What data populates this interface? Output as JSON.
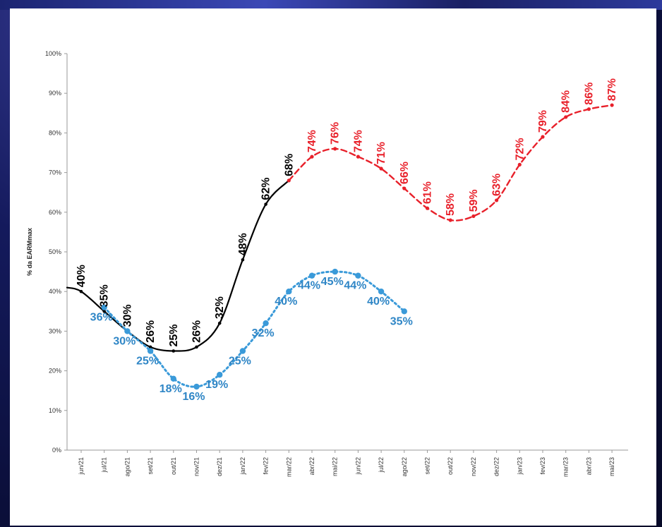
{
  "chart_data": {
    "type": "line",
    "ylabel": "% da EARMmax",
    "ylim": [
      0,
      100
    ],
    "yticks": [
      "0%",
      "10%",
      "20%",
      "30%",
      "40%",
      "50%",
      "60%",
      "70%",
      "80%",
      "90%",
      "100%"
    ],
    "categories": [
      "jun/21",
      "jul/21",
      "ago/21",
      "set/21",
      "out/21",
      "nov/21",
      "dez/21",
      "jan/22",
      "fev/22",
      "mar/22",
      "abr/22",
      "mai/22",
      "jun/22",
      "jul/22",
      "ago/22",
      "set/22",
      "out/22",
      "nov/22",
      "dez/22",
      "jan/23",
      "fev/23",
      "mar/23",
      "abr/23",
      "mai/23"
    ],
    "series": [
      {
        "color": "#000000",
        "style": "solid",
        "label_color": "#000000",
        "lead_in": 41,
        "values": [
          40,
          35,
          30,
          26,
          25,
          26,
          32,
          48,
          62,
          68,
          null,
          null,
          null,
          null,
          null,
          null,
          null,
          null,
          null,
          null,
          null,
          null,
          null,
          null
        ],
        "labels": [
          "40%",
          "35%",
          "30%",
          "26%",
          "25%",
          "26%",
          "32%",
          "48%",
          "62%",
          "68%",
          null,
          null,
          null,
          null,
          null,
          null,
          null,
          null,
          null,
          null,
          null,
          null,
          null,
          null
        ]
      },
      {
        "color": "#e8202a",
        "style": "dashed",
        "label_color": "#e8202a",
        "values": [
          null,
          null,
          null,
          null,
          null,
          null,
          null,
          null,
          null,
          68,
          74,
          76,
          74,
          71,
          66,
          61,
          58,
          59,
          63,
          72,
          79,
          84,
          86,
          87
        ],
        "labels": [
          null,
          null,
          null,
          null,
          null,
          null,
          null,
          null,
          null,
          null,
          "74%",
          "76%",
          "74%",
          "71%",
          "66%",
          "61%",
          "58%",
          "59%",
          "63%",
          "72%",
          "79%",
          "84%",
          "86%",
          "87%"
        ]
      },
      {
        "color": "#3a9ad9",
        "style": "dotted",
        "label_color": "#2f86c6",
        "values": [
          null,
          36,
          30,
          25,
          18,
          16,
          19,
          25,
          32,
          40,
          44,
          45,
          44,
          40,
          35,
          null,
          null,
          null,
          null,
          null,
          null,
          null,
          null,
          null
        ],
        "labels": [
          null,
          "36%",
          "30%",
          "25%",
          "18%",
          "16%",
          "19%",
          "25%",
          "32%",
          "40%",
          "44%",
          "45%",
          "44%",
          "40%",
          "35%",
          null,
          null,
          null,
          null,
          null,
          null,
          null,
          null,
          null
        ]
      }
    ]
  }
}
